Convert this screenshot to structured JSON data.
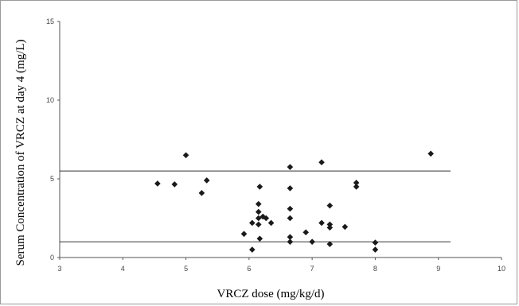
{
  "chart_data": {
    "type": "scatter",
    "title": "",
    "xlabel": "VRCZ dose (mg/kg/d)",
    "ylabel": "Serum Concentration of VRCZ at day 4 (mg/L)",
    "xlim": [
      3,
      10
    ],
    "ylim": [
      0,
      15
    ],
    "x_ticks": [
      "3",
      "4",
      "5",
      "6",
      "7",
      "8",
      "9",
      "10"
    ],
    "y_ticks": [
      "0",
      "5",
      "10",
      "15"
    ],
    "grid": false,
    "marker_color": "#1a1a1a",
    "reference_lines": [
      {
        "y": 1.0
      },
      {
        "y": 5.5
      }
    ],
    "points": [
      {
        "x": 4.55,
        "y": 4.7
      },
      {
        "x": 4.82,
        "y": 4.65
      },
      {
        "x": 5.0,
        "y": 6.5
      },
      {
        "x": 5.25,
        "y": 4.1
      },
      {
        "x": 5.33,
        "y": 4.9
      },
      {
        "x": 5.92,
        "y": 1.5
      },
      {
        "x": 6.05,
        "y": 2.2
      },
      {
        "x": 6.05,
        "y": 0.5
      },
      {
        "x": 6.15,
        "y": 3.4
      },
      {
        "x": 6.15,
        "y": 2.9
      },
      {
        "x": 6.15,
        "y": 2.5
      },
      {
        "x": 6.15,
        "y": 2.1
      },
      {
        "x": 6.17,
        "y": 4.5
      },
      {
        "x": 6.17,
        "y": 1.2
      },
      {
        "x": 6.22,
        "y": 2.6
      },
      {
        "x": 6.27,
        "y": 2.5
      },
      {
        "x": 6.35,
        "y": 2.2
      },
      {
        "x": 6.65,
        "y": 5.75
      },
      {
        "x": 6.65,
        "y": 4.4
      },
      {
        "x": 6.65,
        "y": 3.1
      },
      {
        "x": 6.65,
        "y": 2.5
      },
      {
        "x": 6.65,
        "y": 1.3
      },
      {
        "x": 6.65,
        "y": 1.0
      },
      {
        "x": 6.9,
        "y": 1.6
      },
      {
        "x": 7.0,
        "y": 1.0
      },
      {
        "x": 7.15,
        "y": 6.05
      },
      {
        "x": 7.15,
        "y": 2.2
      },
      {
        "x": 7.28,
        "y": 3.3
      },
      {
        "x": 7.28,
        "y": 2.1
      },
      {
        "x": 7.28,
        "y": 1.9
      },
      {
        "x": 7.28,
        "y": 0.85
      },
      {
        "x": 7.52,
        "y": 1.95
      },
      {
        "x": 7.7,
        "y": 4.75
      },
      {
        "x": 7.7,
        "y": 4.5
      },
      {
        "x": 8.0,
        "y": 0.95
      },
      {
        "x": 8.0,
        "y": 0.5
      },
      {
        "x": 8.88,
        "y": 6.6
      }
    ]
  }
}
